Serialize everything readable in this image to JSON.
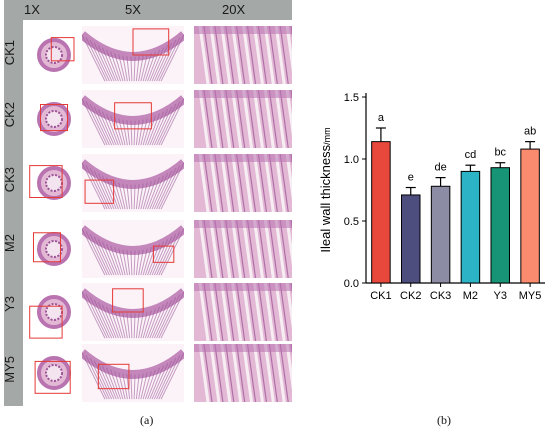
{
  "panel_a": {
    "columns": [
      "1X",
      "5X",
      "20X"
    ],
    "rows": [
      "CK1",
      "CK2",
      "CK3",
      "M2",
      "Y3",
      "MY5"
    ],
    "caption": "(a)"
  },
  "panel_b": {
    "caption": "(b)"
  },
  "chart_data": {
    "type": "bar",
    "categories": [
      "CK1",
      "CK2",
      "CK3",
      "M2",
      "Y3",
      "MY5"
    ],
    "values": [
      1.14,
      0.71,
      0.78,
      0.9,
      0.93,
      1.08
    ],
    "errors": [
      0.11,
      0.06,
      0.07,
      0.05,
      0.04,
      0.06
    ],
    "significance_letters": [
      "a",
      "e",
      "de",
      "cd",
      "bc",
      "ab"
    ],
    "colors": [
      "#e8473c",
      "#4d4e7e",
      "#8c8ca4",
      "#2db3c6",
      "#179475",
      "#fb8b6e"
    ],
    "ylabel": "Ileal wall thickness",
    "ylabel_unit": "/mm",
    "ylim": [
      0,
      1.5
    ],
    "yticks": [
      "0.0",
      "0.5",
      "1.0",
      "1.5"
    ],
    "ytick_values": [
      0,
      0.5,
      1.0,
      1.5
    ]
  }
}
